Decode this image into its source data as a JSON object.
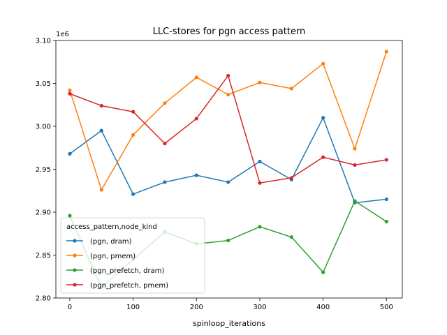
{
  "chart_data": {
    "type": "line",
    "title": "LLC-stores for pgn access pattern",
    "xlabel": "spinloop_iterations",
    "ylabel": "",
    "y_multiplier_label": "1e6",
    "y_scale": 1000000,
    "xlim": [
      -22,
      525
    ],
    "ylim": [
      2.8,
      3.1
    ],
    "x_ticks": [
      0,
      100,
      200,
      300,
      400,
      500
    ],
    "y_ticks": [
      2.8,
      2.85,
      2.9,
      2.95,
      3.0,
      3.05,
      3.1
    ],
    "y_tick_labels": [
      "2.80",
      "2.85",
      "2.90",
      "2.95",
      "3.00",
      "3.05",
      "3.10"
    ],
    "grid": false,
    "legend": {
      "title": "access_pattern,node_kind",
      "placement": "lower-left"
    },
    "x": [
      0,
      50,
      100,
      150,
      200,
      250,
      300,
      350,
      400,
      450,
      500
    ],
    "series": [
      {
        "name": "(pgn, dram)",
        "color": "#1f77b4",
        "values": [
          2.968,
          2.995,
          2.921,
          2.935,
          2.943,
          2.935,
          2.959,
          2.938,
          3.01,
          2.911,
          2.915
        ]
      },
      {
        "name": "(pgn, pmem)",
        "color": "#ff7f0e",
        "values": [
          3.042,
          2.926,
          2.99,
          3.027,
          3.057,
          3.037,
          3.051,
          3.044,
          3.073,
          2.974,
          3.087
        ]
      },
      {
        "name": "(pgn_prefetch, dram)",
        "color": "#2ca02c",
        "values": [
          2.896,
          2.812,
          2.845,
          2.877,
          2.863,
          2.867,
          2.883,
          2.871,
          2.83,
          2.913,
          2.889
        ]
      },
      {
        "name": "(pgn_prefetch, pmem)",
        "color": "#d62728",
        "values": [
          3.038,
          3.024,
          3.017,
          2.98,
          3.009,
          3.059,
          2.934,
          2.94,
          2.964,
          2.955,
          2.961
        ]
      }
    ]
  }
}
